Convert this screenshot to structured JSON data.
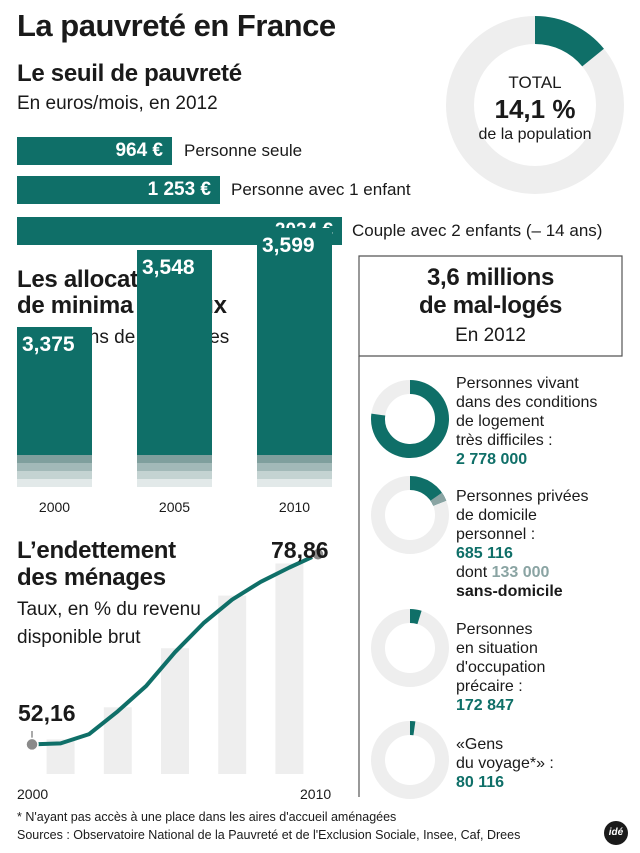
{
  "title": "La pauvreté en France",
  "seuil": {
    "title": "Le seuil de pauvreté",
    "subtitle": "En euros/mois, en 2012",
    "bars": [
      {
        "value_label": "964 €",
        "value": 964,
        "label": "Personne seule"
      },
      {
        "value_label": "1 253 €",
        "value": 1253,
        "label": "Personne avec 1 enfant"
      },
      {
        "value_label": "2024 €",
        "value": 2024,
        "label": "Couple avec 2 enfants (– 14 ans)"
      }
    ]
  },
  "total": {
    "label": "TOTAL",
    "value": "14,1 %",
    "percent": 14.1,
    "caption": "de la population"
  },
  "minima": {
    "title_line1": "Les allocataires",
    "title_line2": "de minima sociaux",
    "subtitle": "En millions de personnes"
  },
  "dette": {
    "title_line1": "L’endettement",
    "title_line2": "des ménages",
    "subtitle_line1": "Taux, en % du revenu",
    "subtitle_line2": "disponible brut",
    "start_label": "52,16",
    "end_label": "78,86",
    "x_start": "2000",
    "x_end": "2010"
  },
  "mallog": {
    "title_line1": "3,6 millions",
    "title_line2": "de mal-logés",
    "subtitle": "En 2012",
    "items": [
      {
        "lines": [
          "Personnes vivant",
          "dans des conditions",
          "de logement",
          "très difficiles :"
        ],
        "number": "2 778 000",
        "fraction": 0.772
      },
      {
        "lines": [
          "Personnes privées",
          "de domicile",
          "personnel :"
        ],
        "number": "685 116",
        "dont": "dont",
        "sub_number": "133 000",
        "sub_label": "sans-domicile",
        "fraction": 0.19,
        "sub_fraction": 0.037
      },
      {
        "lines": [
          "Personnes",
          "en situation",
          "d'occupation",
          "précaire :"
        ],
        "number": "172 847",
        "fraction": 0.048
      },
      {
        "lines": [
          "«Gens",
          "du voyage*» :"
        ],
        "number": "80 116",
        "fraction": 0.022
      }
    ]
  },
  "colors": {
    "teal": "#0f6f68",
    "grey": "#8aa4a3",
    "light": "#eeeeee"
  },
  "footnote": "* N'ayant pas accès à une place dans les aires d'accueil aménagées",
  "sources": "Sources : Observatoire National de la Pauvreté et de l'Exclusion Sociale, Insee, Caf, Drees",
  "logo": "idé",
  "chart_data": [
    {
      "type": "bar",
      "categories": [
        "2000",
        "2005",
        "2010"
      ],
      "values": [
        3.375,
        3.548,
        3.599
      ],
      "value_labels": [
        "3,375",
        "3,548",
        "3,599"
      ]
    },
    {
      "type": "line",
      "x": [
        2000,
        2001,
        2002,
        2003,
        2004,
        2005,
        2006,
        2007,
        2008,
        2009,
        2010
      ],
      "y": [
        52.16,
        52.3,
        53.6,
        56.8,
        60.4,
        65.1,
        69.2,
        72.5,
        75.0,
        77.0,
        78.86
      ],
      "xlim": [
        2000,
        2010
      ]
    }
  ]
}
